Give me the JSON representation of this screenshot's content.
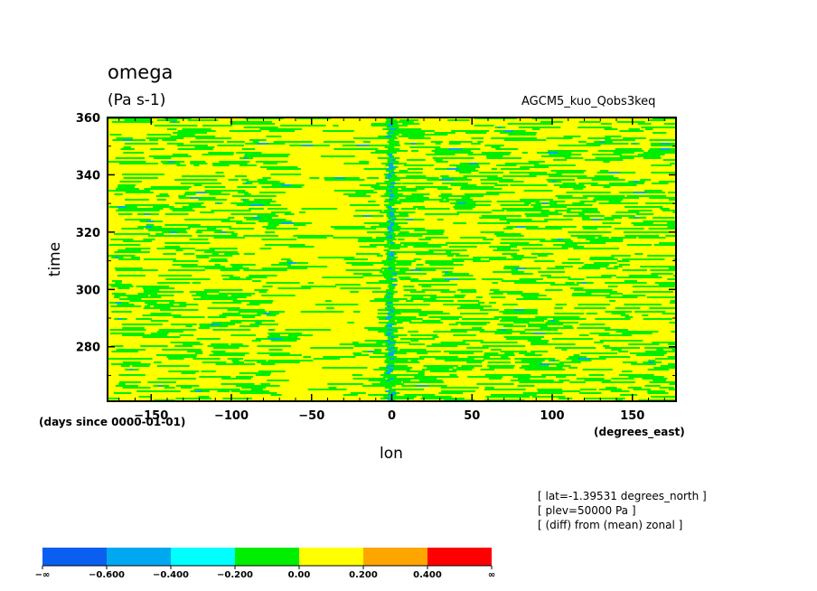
{
  "title": "omega",
  "units": "(Pa s-1)",
  "dataset": "AGCM5_kuo_Qobs3keq",
  "info_lines": [
    "[ lat=-1.39531 degrees_north ]",
    "[ plev=50000 Pa ]",
    "[ (diff) from (mean) zonal ]"
  ],
  "chart_data": {
    "type": "heatmap",
    "title": "omega",
    "units": "(Pa s-1)",
    "xlabel": "lon",
    "x_units": "(degrees_east)",
    "ylabel": "time",
    "y_units": "(days since 0000-01-01)",
    "xlim": [
      -177.1875,
      177.1875
    ],
    "ylim": [
      261,
      360
    ],
    "x_ticks": [
      -150,
      -100,
      -50,
      0,
      50,
      100,
      150
    ],
    "x_tick_labels": [
      "−150",
      "−100",
      "−50",
      "0",
      "50",
      "100",
      "150"
    ],
    "y_ticks": [
      280,
      300,
      320,
      340,
      360
    ],
    "y_tick_labels": [
      "280",
      "300",
      "320",
      "340",
      "360"
    ],
    "colorbar": {
      "levels": [
        "−∞",
        "−0.600",
        "−0.400",
        "−0.200",
        "0.00",
        "0.200",
        "0.400",
        "∞"
      ],
      "colors": [
        "#0a5ff0",
        "#00a8f0",
        "#00ffff",
        "#00ee00",
        "#ffff00",
        "#ffa500",
        "#ff0000"
      ]
    },
    "dominant_bins": [
      "0.00 to 0.200",
      "-0.200 to 0.00"
    ],
    "features": [
      {
        "description": "band of negative values (-0.600 to -0.200) along lon 0",
        "lon": 0,
        "time_range": [
          261,
          360
        ]
      },
      {
        "description": "positive (0.00 to 0.200) region",
        "lon_range": [
          -75,
          -25
        ],
        "time_range": [
          261,
          360
        ]
      }
    ]
  }
}
